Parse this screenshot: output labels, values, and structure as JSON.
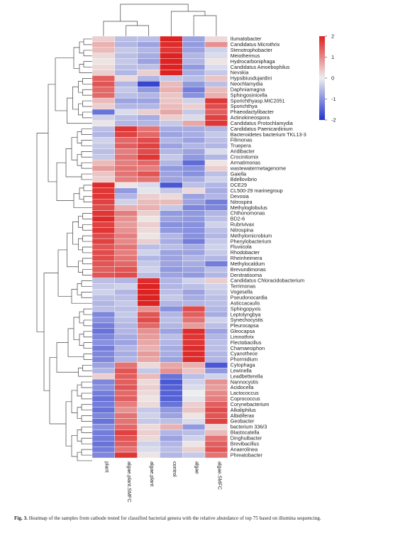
{
  "chart_data": {
    "type": "heatmap",
    "title": "",
    "columns": [
      "plant",
      "algae.plant.SMFC",
      "algae.plant",
      "control",
      "algae",
      "algae.SMFC"
    ],
    "rows": [
      {
        "name": "Ilumatobacter",
        "values": [
          0.3,
          -0.5,
          -0.5,
          2.0,
          -0.8,
          0.2
        ]
      },
      {
        "name": "Candidatus Microthrix",
        "values": [
          0.6,
          -0.6,
          -0.8,
          1.9,
          -0.9,
          0.9
        ]
      },
      {
        "name": "Stenotrophobacter",
        "values": [
          0.5,
          -0.4,
          -0.6,
          1.8,
          -0.8,
          -0.3
        ]
      },
      {
        "name": "Meiothermus",
        "values": [
          0.2,
          -0.5,
          -0.7,
          2.0,
          -0.6,
          -0.2
        ]
      },
      {
        "name": "Hydrocarboniphaga",
        "values": [
          0.1,
          -0.4,
          -0.8,
          2.0,
          -0.6,
          0.1
        ]
      },
      {
        "name": "Candidatus Amoebophilus",
        "values": [
          0.2,
          -0.5,
          -0.5,
          2.0,
          -0.9,
          -0.2
        ]
      },
      {
        "name": "Nevskia",
        "values": [
          0.3,
          -0.6,
          0.3,
          2.0,
          -0.7,
          -0.4
        ]
      },
      {
        "name": "Hypsibiusdujardini",
        "values": [
          1.4,
          0.2,
          -0.6,
          -0.4,
          -0.5,
          0.4
        ]
      },
      {
        "name": "Neochlamydia",
        "values": [
          1.5,
          -0.6,
          -1.8,
          0.5,
          -0.9,
          -0.5
        ]
      },
      {
        "name": "Daphniamagna",
        "values": [
          1.3,
          -0.4,
          -0.9,
          0.6,
          -1.2,
          0.5
        ]
      },
      {
        "name": "Sphingosinicella",
        "values": [
          1.3,
          -0.5,
          -0.6,
          0.4,
          -1.0,
          0.6
        ]
      },
      {
        "name": "Sporichthyasp.MIC2051",
        "values": [
          0.5,
          -0.8,
          -0.8,
          0.4,
          -0.3,
          1.8
        ]
      },
      {
        "name": "Sporichthya",
        "values": [
          0.3,
          -0.6,
          -0.6,
          0.5,
          0.3,
          1.6
        ]
      },
      {
        "name": "Phaeodactylibacter",
        "values": [
          -1.3,
          -0.2,
          0.3,
          0.7,
          -0.4,
          1.4
        ]
      },
      {
        "name": "Actinokineospora",
        "values": [
          -0.3,
          -0.5,
          -0.7,
          0.3,
          -0.2,
          1.7
        ]
      },
      {
        "name": "Candidatus Protochlamydia",
        "values": [
          0.1,
          -0.6,
          -0.6,
          -0.4,
          0.7,
          1.8
        ]
      },
      {
        "name": "Candidatus Paenicardinium",
        "values": [
          -0.5,
          1.8,
          1.2,
          -0.7,
          -0.7,
          -0.6
        ]
      },
      {
        "name": "Bacteroidetes bacterium TKL13-3",
        "values": [
          -0.6,
          1.7,
          1.3,
          -0.8,
          -0.7,
          -0.4
        ]
      },
      {
        "name": "Filimonas",
        "values": [
          -0.3,
          1.3,
          1.6,
          -0.6,
          -0.8,
          -0.5
        ]
      },
      {
        "name": "Truepera",
        "values": [
          -0.4,
          1.4,
          1.7,
          -0.8,
          -0.6,
          -0.6
        ]
      },
      {
        "name": "Aridibacter",
        "values": [
          -0.5,
          1.1,
          1.6,
          -0.6,
          -0.8,
          -0.2
        ]
      },
      {
        "name": "Crocinitomix",
        "values": [
          -0.4,
          1.2,
          1.8,
          -0.4,
          -0.9,
          -0.6
        ]
      },
      {
        "name": "Armatimonas",
        "values": [
          0.5,
          1.1,
          1.3,
          -0.6,
          -1.4,
          0.1
        ]
      },
      {
        "name": "wastewatermetagenome",
        "values": [
          0.8,
          1.2,
          1.1,
          -0.9,
          -1.0,
          0.3
        ]
      },
      {
        "name": "Gaiella",
        "values": [
          0.4,
          1.2,
          1.5,
          -0.8,
          -1.0,
          -0.5
        ]
      },
      {
        "name": "Bdellovibrio",
        "values": [
          0.3,
          1.1,
          1.2,
          -0.8,
          -0.7,
          -0.3
        ]
      },
      {
        "name": "DCE29",
        "values": [
          1.9,
          0.1,
          -0.2,
          -1.6,
          -0.5,
          -0.6
        ]
      },
      {
        "name": "CL500-29 marinegroup",
        "values": [
          1.8,
          -0.9,
          -0.1,
          -0.4,
          0.2,
          -0.7
        ]
      },
      {
        "name": "Devosia",
        "values": [
          1.8,
          -0.6,
          0.3,
          0.2,
          -0.8,
          -0.6
        ]
      },
      {
        "name": "Nitrospira",
        "values": [
          1.7,
          -0.3,
          0.5,
          0.5,
          -0.8,
          -1.2
        ]
      },
      {
        "name": "Methyloglobulus",
        "values": [
          1.6,
          0.6,
          0.6,
          -0.4,
          -1.1,
          -1.1
        ]
      },
      {
        "name": "Chthonomonas",
        "values": [
          1.8,
          1.1,
          0.3,
          -0.9,
          -0.9,
          -0.6
        ]
      },
      {
        "name": "BD2-6",
        "values": [
          1.9,
          0.9,
          0.1,
          -0.8,
          -0.9,
          -0.5
        ]
      },
      {
        "name": "Rubrivivax",
        "values": [
          1.7,
          0.8,
          0.3,
          -1.0,
          -1.0,
          -0.3
        ]
      },
      {
        "name": "Nitrospina",
        "values": [
          1.8,
          0.9,
          0.2,
          -0.9,
          -1.0,
          -0.5
        ]
      },
      {
        "name": "Methylomicrobium",
        "values": [
          1.6,
          1.1,
          0.1,
          -0.6,
          -1.0,
          -0.6
        ]
      },
      {
        "name": "Phenylobacterium",
        "values": [
          1.7,
          1.0,
          0.3,
          -0.7,
          -1.2,
          -0.4
        ]
      },
      {
        "name": "Fluviicola",
        "values": [
          1.5,
          1.2,
          -0.5,
          -0.5,
          -0.7,
          -0.3
        ]
      },
      {
        "name": "Rhodobacter",
        "values": [
          1.6,
          1.1,
          -0.3,
          -0.8,
          -0.8,
          -0.4
        ]
      },
      {
        "name": "Rheinheimera",
        "values": [
          1.6,
          1.2,
          -0.6,
          -0.8,
          -0.6,
          -0.6
        ]
      },
      {
        "name": "Methylocaldum",
        "values": [
          1.5,
          1.3,
          -0.4,
          -0.8,
          -0.7,
          -1.2
        ]
      },
      {
        "name": "Brevundimonas",
        "values": [
          1.4,
          1.5,
          -0.3,
          -0.9,
          -0.8,
          -0.5
        ]
      },
      {
        "name": "Denitratisoma",
        "values": [
          1.5,
          1.6,
          -0.5,
          -0.8,
          -0.9,
          -0.6
        ]
      },
      {
        "name": "Candidatus Chloracidobacterium",
        "values": [
          -0.5,
          -0.6,
          1.9,
          -0.6,
          -0.3,
          0.3
        ]
      },
      {
        "name": "Terrimonas",
        "values": [
          -0.4,
          -0.3,
          2.0,
          -0.6,
          -0.5,
          -0.3
        ]
      },
      {
        "name": "Vogesella",
        "values": [
          -0.3,
          -0.6,
          2.0,
          -0.5,
          -0.8,
          -0.4
        ]
      },
      {
        "name": "Pseudonocardia",
        "values": [
          -0.5,
          -0.5,
          2.0,
          -0.4,
          -0.7,
          -0.5
        ]
      },
      {
        "name": "Asticcacaulis",
        "values": [
          -0.6,
          -0.4,
          2.0,
          -0.6,
          -0.6,
          -0.5
        ]
      },
      {
        "name": "Sphingopyxis",
        "values": [
          -0.5,
          -0.5,
          0.9,
          -1.0,
          1.6,
          -0.6
        ]
      },
      {
        "name": "Leptolyngbya",
        "values": [
          -1.1,
          -0.4,
          1.5,
          -0.6,
          1.4,
          -0.7
        ]
      },
      {
        "name": "Synechocystis",
        "values": [
          -1.0,
          -0.5,
          1.6,
          -0.5,
          1.2,
          -0.3
        ]
      },
      {
        "name": "Pleurocapsa",
        "values": [
          -1.2,
          -0.6,
          1.3,
          -0.6,
          0.8,
          -0.5
        ]
      },
      {
        "name": "Gleocapsa",
        "values": [
          -1.3,
          -0.6,
          0.9,
          -0.8,
          1.9,
          -0.8
        ]
      },
      {
        "name": "Limnothrix",
        "values": [
          -1.1,
          -0.7,
          0.8,
          -0.5,
          1.8,
          -0.6
        ]
      },
      {
        "name": "Flectobacillus",
        "values": [
          -1.0,
          -0.8,
          0.7,
          -0.6,
          1.8,
          -0.5
        ]
      },
      {
        "name": "Chamaesiphon",
        "values": [
          -1.2,
          -0.6,
          0.6,
          -0.7,
          1.9,
          -0.5
        ]
      },
      {
        "name": "Cyanothece",
        "values": [
          -1.1,
          -0.7,
          0.8,
          -0.7,
          1.9,
          -0.6
        ]
      },
      {
        "name": "Phormidium",
        "values": [
          -1.1,
          -0.6,
          0.7,
          -0.8,
          1.9,
          -0.6
        ]
      },
      {
        "name": "Cytophaga",
        "values": [
          -0.8,
          1.2,
          0.2,
          0.7,
          0.6,
          -1.6
        ]
      },
      {
        "name": "Lewinella",
        "values": [
          -0.6,
          1.5,
          -0.4,
          0.9,
          0.4,
          -0.9
        ]
      },
      {
        "name": "Leadbetterella",
        "values": [
          0.3,
          1.4,
          0.5,
          -1.3,
          -0.5,
          -0.3
        ]
      },
      {
        "name": "Nannocystis",
        "values": [
          -1.1,
          1.4,
          0.2,
          -1.6,
          -0.3,
          0.9
        ]
      },
      {
        "name": "Acidocella",
        "values": [
          -1.0,
          1.5,
          0.3,
          -1.5,
          -0.2,
          0.8
        ]
      },
      {
        "name": "Lactococcus",
        "values": [
          -1.2,
          1.3,
          0.2,
          -1.5,
          0.0,
          1.0
        ]
      },
      {
        "name": "Coprococcus",
        "values": [
          -1.3,
          1.4,
          0.1,
          -1.5,
          -0.1,
          1.1
        ]
      },
      {
        "name": "Corynebacterium",
        "values": [
          -1.2,
          1.1,
          0.2,
          -1.3,
          0.3,
          1.4
        ]
      },
      {
        "name": "Alkaliphilus",
        "values": [
          -1.3,
          0.9,
          -0.4,
          -0.9,
          0.4,
          1.6
        ]
      },
      {
        "name": "Albidiferax",
        "values": [
          -1.1,
          1.2,
          -0.3,
          -0.8,
          0.1,
          1.5
        ]
      },
      {
        "name": "Geobacter",
        "values": [
          -1.3,
          1.2,
          -0.4,
          -0.5,
          -0.2,
          1.7
        ]
      },
      {
        "name": "bacterium 336/3",
        "values": [
          -1.0,
          1.3,
          0.2,
          0.6,
          -0.9,
          0.2
        ]
      },
      {
        "name": "Blastocatella",
        "values": [
          -1.2,
          1.7,
          0.3,
          -0.6,
          -0.5,
          0.5
        ]
      },
      {
        "name": "Dinghuibacter",
        "values": [
          -1.2,
          1.5,
          0.2,
          -0.8,
          -0.3,
          1.2
        ]
      },
      {
        "name": "Brevibacillus",
        "values": [
          -1.3,
          1.4,
          -0.3,
          -0.6,
          0.1,
          1.4
        ]
      },
      {
        "name": "Anaerolinea",
        "values": [
          -1.2,
          1.2,
          -0.2,
          -0.5,
          0.3,
          1.5
        ]
      },
      {
        "name": "Phreatobacter",
        "values": [
          -1.1,
          1.8,
          0.1,
          -0.6,
          -0.4,
          1.2
        ]
      }
    ],
    "color_scale": {
      "min": -2,
      "max": 2,
      "low": "#2233cc",
      "mid": "#eeeeee",
      "high": "#dd2222"
    },
    "scale_ticks": [
      "2",
      "1",
      "0",
      "-1",
      "-2"
    ]
  },
  "caption": {
    "label": "Fig. 3.",
    "text": "Heatmap of the samples from cathode tested for classified bacterial genera with the relative abundance of top 75 based on illumina sequencing."
  }
}
